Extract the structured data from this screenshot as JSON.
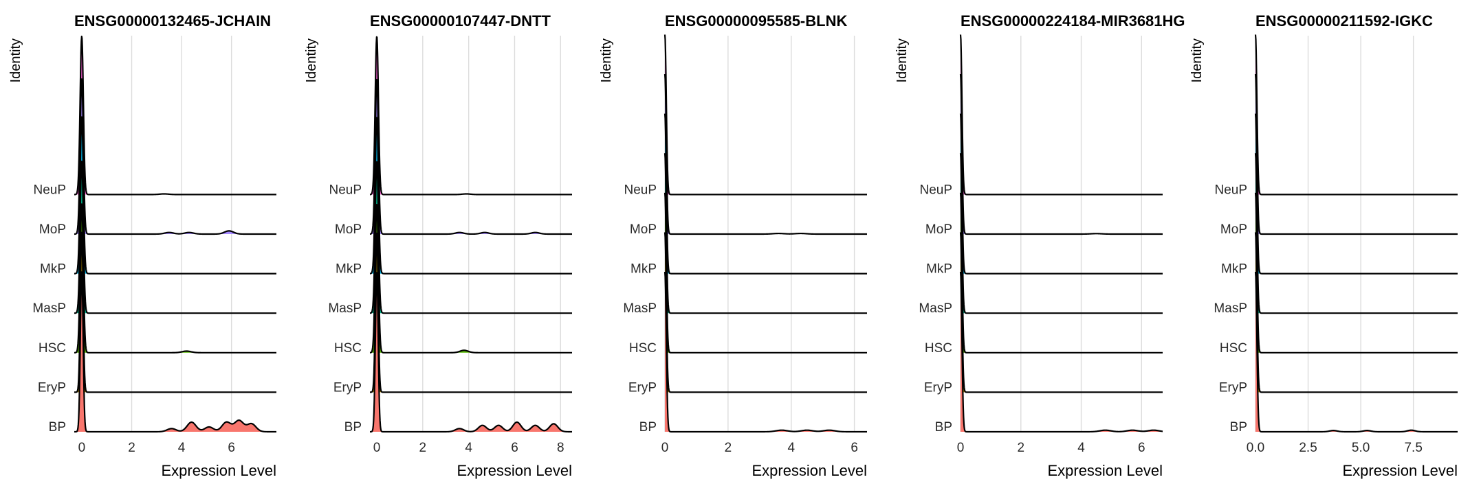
{
  "chart_data": [
    {
      "type": "ridgeline",
      "title": "ENSG00000132465-JCHAIN",
      "xlabel": "Expression Level",
      "ylabel": "Identity",
      "xlim": [
        -0.3,
        7.8
      ],
      "xticks": [
        0,
        2,
        4,
        6
      ],
      "xtick_labels": [
        "0",
        "2",
        "4",
        "6"
      ],
      "categories": [
        "BP",
        "EryP",
        "HSC",
        "MasP",
        "MkP",
        "MoP",
        "NeuP"
      ],
      "grid": "vertical",
      "legend": "none",
      "ridges": [
        {
          "category": "BP",
          "color": "#F8766D",
          "peak": 1.0,
          "tail": [
            [
              3.6,
              0.02
            ],
            [
              4.4,
              0.06
            ],
            [
              5.1,
              0.03
            ],
            [
              5.8,
              0.06
            ],
            [
              6.3,
              0.07
            ],
            [
              6.8,
              0.05
            ]
          ]
        },
        {
          "category": "EryP",
          "color": "#C49A00",
          "peak": 1.0,
          "tail": []
        },
        {
          "category": "HSC",
          "color": "#53B400",
          "peak": 0.93,
          "tail": [
            [
              4.2,
              0.01
            ]
          ]
        },
        {
          "category": "MasP",
          "color": "#00C094",
          "peak": 0.95,
          "tail": []
        },
        {
          "category": "MkP",
          "color": "#00B6EB",
          "peak": 0.98,
          "tail": []
        },
        {
          "category": "MoP",
          "color": "#A58AFF",
          "peak": 0.97,
          "tail": [
            [
              3.5,
              0.01
            ],
            [
              4.3,
              0.01
            ],
            [
              5.9,
              0.02
            ]
          ]
        },
        {
          "category": "NeuP",
          "color": "#FB61D7",
          "peak": 0.99,
          "tail": [
            [
              3.3,
              0.004
            ]
          ]
        }
      ]
    },
    {
      "type": "ridgeline",
      "title": "ENSG00000107447-DNTT",
      "xlabel": "Expression Level",
      "ylabel": "Identity",
      "xlim": [
        -0.3,
        8.5
      ],
      "xticks": [
        0,
        2,
        4,
        6,
        8
      ],
      "xtick_labels": [
        "0",
        "2",
        "4",
        "6",
        "8"
      ],
      "categories": [
        "BP",
        "EryP",
        "HSC",
        "MasP",
        "MkP",
        "MoP",
        "NeuP"
      ],
      "grid": "vertical",
      "legend": "none",
      "ridges": [
        {
          "category": "BP",
          "color": "#F8766D",
          "peak": 1.0,
          "tail": [
            [
              3.6,
              0.02
            ],
            [
              4.6,
              0.04
            ],
            [
              5.3,
              0.04
            ],
            [
              6.1,
              0.06
            ],
            [
              6.9,
              0.04
            ],
            [
              7.7,
              0.05
            ]
          ]
        },
        {
          "category": "EryP",
          "color": "#C49A00",
          "peak": 1.0,
          "tail": []
        },
        {
          "category": "HSC",
          "color": "#53B400",
          "peak": 0.93,
          "tail": [
            [
              3.8,
              0.015
            ]
          ]
        },
        {
          "category": "MasP",
          "color": "#00C094",
          "peak": 0.95,
          "tail": []
        },
        {
          "category": "MkP",
          "color": "#00B6EB",
          "peak": 0.98,
          "tail": []
        },
        {
          "category": "MoP",
          "color": "#A58AFF",
          "peak": 0.97,
          "tail": [
            [
              3.6,
              0.01
            ],
            [
              4.7,
              0.01
            ],
            [
              6.9,
              0.01
            ]
          ]
        },
        {
          "category": "NeuP",
          "color": "#FB61D7",
          "peak": 0.99,
          "tail": [
            [
              3.9,
              0.004
            ]
          ]
        }
      ]
    },
    {
      "type": "ridgeline",
      "title": "ENSG00000095585-BLNK",
      "xlabel": "Expression Level",
      "ylabel": "Identity",
      "xlim": [
        0,
        6.4
      ],
      "xticks": [
        0,
        2,
        4,
        6
      ],
      "xtick_labels": [
        "0",
        "2",
        "4",
        "6"
      ],
      "categories": [
        "BP",
        "EryP",
        "HSC",
        "MasP",
        "MkP",
        "MoP",
        "NeuP"
      ],
      "grid": "vertical",
      "legend": "none",
      "ridges": [
        {
          "category": "BP",
          "color": "#F8766D",
          "peak": 1.0,
          "tail": [
            [
              3.7,
              0.01
            ],
            [
              4.5,
              0.01
            ],
            [
              5.2,
              0.01
            ]
          ]
        },
        {
          "category": "EryP",
          "color": "#C49A00",
          "peak": 1.0,
          "tail": []
        },
        {
          "category": "HSC",
          "color": "#53B400",
          "peak": 1.0,
          "tail": []
        },
        {
          "category": "MasP",
          "color": "#00C094",
          "peak": 1.0,
          "tail": []
        },
        {
          "category": "MkP",
          "color": "#00B6EB",
          "peak": 1.0,
          "tail": []
        },
        {
          "category": "MoP",
          "color": "#A58AFF",
          "peak": 1.0,
          "tail": [
            [
              3.6,
              0.004
            ],
            [
              4.3,
              0.004
            ]
          ]
        },
        {
          "category": "NeuP",
          "color": "#FB61D7",
          "peak": 1.0,
          "tail": []
        }
      ]
    },
    {
      "type": "ridgeline",
      "title": "ENSG00000224184-MIR3681HG",
      "xlabel": "Expression Level",
      "ylabel": "Identity",
      "xlim": [
        0,
        6.7
      ],
      "xticks": [
        0,
        2,
        4,
        6
      ],
      "xtick_labels": [
        "0",
        "2",
        "4",
        "6"
      ],
      "categories": [
        "BP",
        "EryP",
        "HSC",
        "MasP",
        "MkP",
        "MoP",
        "NeuP"
      ],
      "grid": "vertical",
      "legend": "none",
      "ridges": [
        {
          "category": "BP",
          "color": "#F8766D",
          "peak": 1.0,
          "tail": [
            [
              4.8,
              0.01
            ],
            [
              5.7,
              0.01
            ],
            [
              6.4,
              0.01
            ]
          ]
        },
        {
          "category": "EryP",
          "color": "#C49A00",
          "peak": 1.0,
          "tail": []
        },
        {
          "category": "HSC",
          "color": "#53B400",
          "peak": 1.0,
          "tail": []
        },
        {
          "category": "MasP",
          "color": "#00C094",
          "peak": 1.0,
          "tail": []
        },
        {
          "category": "MkP",
          "color": "#00B6EB",
          "peak": 1.0,
          "tail": []
        },
        {
          "category": "MoP",
          "color": "#A58AFF",
          "peak": 1.0,
          "tail": [
            [
              4.5,
              0.003
            ]
          ]
        },
        {
          "category": "NeuP",
          "color": "#FB61D7",
          "peak": 1.0,
          "tail": []
        }
      ]
    },
    {
      "type": "ridgeline",
      "title": "ENSG00000211592-IGKC",
      "xlabel": "Expression Level",
      "ylabel": "Identity",
      "xlim": [
        0,
        9.6
      ],
      "xticks": [
        0,
        2.5,
        5,
        7.5
      ],
      "xtick_labels": [
        "0.0",
        "2.5",
        "5.0",
        "7.5"
      ],
      "categories": [
        "BP",
        "EryP",
        "HSC",
        "MasP",
        "MkP",
        "MoP",
        "NeuP"
      ],
      "grid": "vertical",
      "legend": "none",
      "ridges": [
        {
          "category": "BP",
          "color": "#F8766D",
          "peak": 1.0,
          "tail": [
            [
              3.7,
              0.008
            ],
            [
              5.3,
              0.008
            ],
            [
              7.4,
              0.01
            ]
          ]
        },
        {
          "category": "EryP",
          "color": "#C49A00",
          "peak": 1.0,
          "tail": []
        },
        {
          "category": "HSC",
          "color": "#53B400",
          "peak": 1.0,
          "tail": []
        },
        {
          "category": "MasP",
          "color": "#00C094",
          "peak": 1.0,
          "tail": []
        },
        {
          "category": "MkP",
          "color": "#00B6EB",
          "peak": 1.0,
          "tail": []
        },
        {
          "category": "MoP",
          "color": "#A58AFF",
          "peak": 1.0,
          "tail": []
        },
        {
          "category": "NeuP",
          "color": "#FB61D7",
          "peak": 1.0,
          "tail": []
        }
      ]
    }
  ]
}
